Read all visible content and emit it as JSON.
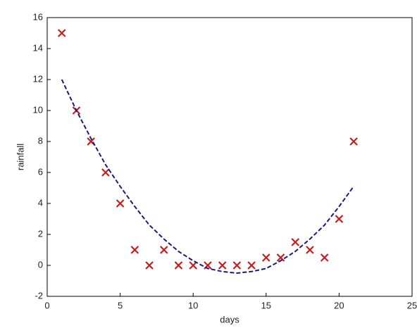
{
  "chart_data": {
    "type": "scatter",
    "xlabel": "days",
    "ylabel": "rainfall",
    "xlim": [
      0,
      25
    ],
    "xticks": [
      0,
      5,
      10,
      15,
      20,
      25
    ],
    "ylim": [
      -2,
      16
    ],
    "yticks": [
      -2,
      0,
      2,
      4,
      6,
      8,
      10,
      12,
      14,
      16
    ],
    "series": [
      {
        "color": "#c41e1e",
        "marker": "x",
        "x": [
          1,
          2,
          3,
          4,
          5,
          6,
          7,
          8,
          9,
          10,
          11,
          12,
          13,
          14,
          15,
          16,
          17,
          18,
          19,
          20,
          21
        ],
        "values": [
          15,
          10,
          8,
          6,
          4,
          1,
          0,
          1,
          0,
          0,
          0,
          0,
          0,
          0,
          0.5,
          0.5,
          1.5,
          1,
          0.5,
          3,
          8
        ]
      },
      {
        "color": "#1a1a7a",
        "line_style": "dashed",
        "x": [
          1,
          2,
          3,
          4,
          5,
          6,
          7,
          8,
          9,
          10,
          11,
          12,
          13,
          14,
          15,
          16,
          17,
          18,
          19,
          20,
          21
        ],
        "values": [
          12,
          10,
          8.2,
          6.5,
          5.1,
          3.8,
          2.6,
          1.7,
          0.9,
          0.3,
          -0.2,
          -0.4,
          -0.5,
          -0.4,
          -0.2,
          0.3,
          0.9,
          1.7,
          2.6,
          3.8,
          5.1
        ]
      }
    ]
  }
}
